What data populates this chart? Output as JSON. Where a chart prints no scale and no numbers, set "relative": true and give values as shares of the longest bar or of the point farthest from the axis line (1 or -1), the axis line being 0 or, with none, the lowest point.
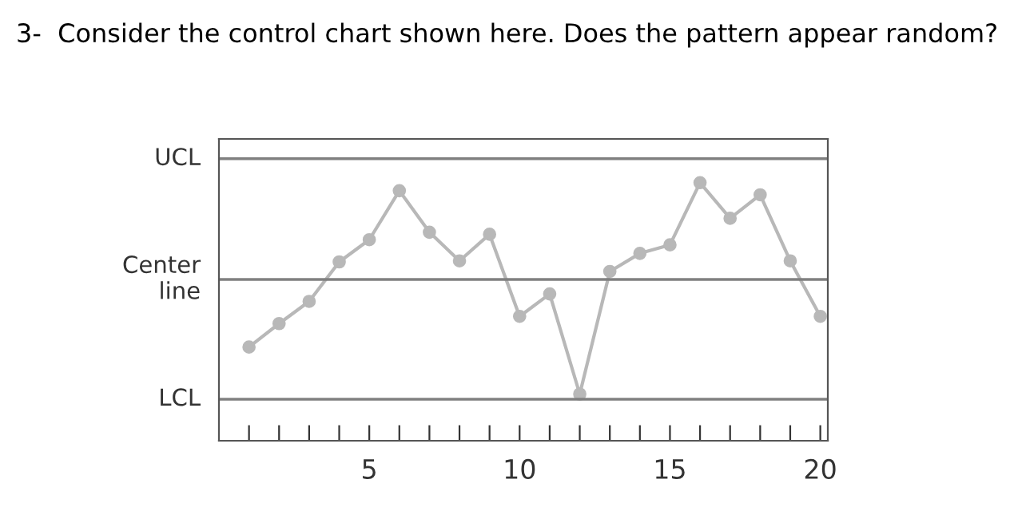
{
  "chart_data": {
    "type": "line",
    "title": "3-  Consider the control chart shown here. Does the pattern appear random?",
    "relative": true,
    "x": [
      1,
      2,
      3,
      4,
      5,
      6,
      7,
      8,
      9,
      10,
      11,
      12,
      13,
      14,
      15,
      16,
      17,
      18,
      19,
      20
    ],
    "series": [
      {
        "color": "#b8b8b8",
        "values": [
          0.363,
          0.454,
          0.54,
          0.693,
          0.779,
          0.969,
          0.808,
          0.697,
          0.8,
          0.482,
          0.569,
          0.181,
          0.656,
          0.726,
          0.759,
          1,
          0.862,
          0.953,
          0.697,
          0.482
        ]
      }
    ],
    "xlim": [
      0,
      20.25
    ],
    "xticks": [
      {
        "value": 1,
        "label": null
      },
      {
        "value": 2,
        "label": null
      },
      {
        "value": 3,
        "label": null
      },
      {
        "value": 4,
        "label": null
      },
      5,
      {
        "value": 6,
        "label": null
      },
      {
        "value": 7,
        "label": null
      },
      {
        "value": 8,
        "label": null
      },
      {
        "value": 9,
        "label": null
      },
      10,
      {
        "value": 11,
        "label": null
      },
      {
        "value": 12,
        "label": null
      },
      {
        "value": 13,
        "label": null
      },
      {
        "value": 14,
        "label": null
      },
      15,
      {
        "value": 16,
        "label": null
      },
      {
        "value": 17,
        "label": null
      },
      {
        "value": 18,
        "label": null
      },
      {
        "value": 19,
        "label": null
      },
      20
    ],
    "ref_lines": [
      {
        "axis": "y",
        "value": 1.093,
        "label": "UCL",
        "color": "#808080"
      },
      {
        "axis": "y",
        "value": 0.625,
        "label": "Center\nline",
        "color": "#808080"
      },
      {
        "axis": "y",
        "value": 0.161,
        "label": "LCL",
        "color": "#808080"
      }
    ],
    "marker": "circle",
    "line_style": "solid",
    "grid": false,
    "tick_labels": "x",
    "legend": false
  }
}
